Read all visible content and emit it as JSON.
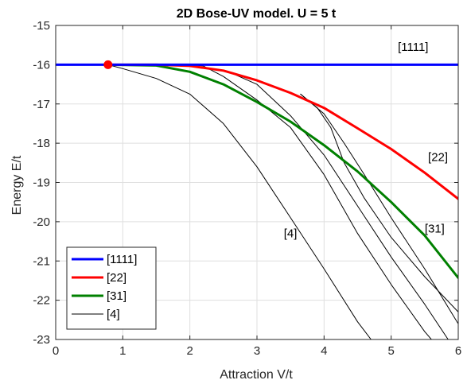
{
  "chart_data": {
    "type": "line",
    "title": "2D Bose-UV model. U = 5 t",
    "xlabel": "Attraction V/t",
    "ylabel": "Energy E/t",
    "xlim": [
      0,
      6
    ],
    "ylim": [
      -23,
      -15
    ],
    "xticks": [
      "0",
      "1",
      "2",
      "3",
      "4",
      "5",
      "6"
    ],
    "yticks": [
      "-15",
      "-16",
      "-17",
      "-18",
      "-19",
      "-20",
      "-21",
      "-22",
      "-23"
    ],
    "grid": true,
    "legend_position": "bottom-left",
    "marker": {
      "x": 0.78,
      "y": -16.0,
      "color": "#ff0000"
    },
    "series": [
      {
        "name": "[1111]",
        "color": "#0000ff",
        "width": 3,
        "x": [
          0,
          6
        ],
        "y": [
          -16.0,
          -16.0
        ]
      },
      {
        "name": "[22]",
        "color": "#ff0000",
        "width": 3,
        "x": [
          0.78,
          1.5,
          2.0,
          2.5,
          3.0,
          3.5,
          4.0,
          4.5,
          5.0,
          5.5,
          6.0
        ],
        "y": [
          -16.0,
          -16.0,
          -16.03,
          -16.15,
          -16.4,
          -16.72,
          -17.1,
          -17.62,
          -18.15,
          -18.75,
          -19.42
        ]
      },
      {
        "name": "[31]",
        "color": "#008000",
        "width": 3,
        "x": [
          0.78,
          1.5,
          2.0,
          2.5,
          3.0,
          3.5,
          4.0,
          4.5,
          5.0,
          5.5,
          6.0
        ],
        "y": [
          -16.0,
          -16.02,
          -16.18,
          -16.5,
          -16.95,
          -17.45,
          -18.05,
          -18.72,
          -19.5,
          -20.35,
          -21.43
        ]
      },
      {
        "name": "[4]",
        "color": "#000000",
        "width": 1,
        "x": [
          0.78,
          1.0,
          1.5,
          2.0,
          2.5,
          3.0,
          3.5,
          4.0,
          4.5,
          4.7
        ],
        "y": [
          -16.0,
          -16.1,
          -16.35,
          -16.75,
          -17.5,
          -18.6,
          -19.9,
          -21.2,
          -22.55,
          -23.0
        ]
      }
    ],
    "extra_lines": [
      {
        "color": "#000000",
        "width": 1,
        "x": [
          2.0,
          2.2,
          2.5,
          3.0,
          3.5,
          4.0,
          4.5,
          5.0,
          5.5,
          5.6
        ],
        "y": [
          -16.0,
          -16.03,
          -16.3,
          -16.9,
          -17.6,
          -18.8,
          -20.3,
          -21.6,
          -22.8,
          -23.0
        ]
      },
      {
        "color": "#000000",
        "width": 1,
        "x": [
          2.6,
          3.0,
          3.5,
          4.0,
          4.5,
          5.0,
          5.5,
          5.85
        ],
        "y": [
          -16.2,
          -16.5,
          -17.3,
          -18.3,
          -19.6,
          -20.9,
          -22.1,
          -23.0
        ]
      },
      {
        "color": "#000000",
        "width": 1,
        "x": [
          3.65,
          4.0,
          4.3,
          4.6,
          5.0,
          5.5,
          6.0
        ],
        "y": [
          -16.75,
          -17.25,
          -18.0,
          -18.8,
          -19.9,
          -21.2,
          -22.6
        ]
      },
      {
        "color": "#000000",
        "width": 1,
        "x": [
          3.65,
          3.9,
          4.1,
          4.3,
          4.6,
          5.0,
          5.5,
          6.0
        ],
        "y": [
          -16.75,
          -17.1,
          -17.6,
          -18.5,
          -19.4,
          -20.4,
          -21.4,
          -22.3
        ]
      }
    ],
    "annotations": [
      {
        "text": "[1111]",
        "x": 5.1,
        "y": -15.65
      },
      {
        "text": "[22]",
        "x": 5.55,
        "y": -18.45
      },
      {
        "text": "[31]",
        "x": 5.5,
        "y": -20.28
      },
      {
        "text": "[4]",
        "x": 3.4,
        "y": -20.4
      }
    ]
  }
}
